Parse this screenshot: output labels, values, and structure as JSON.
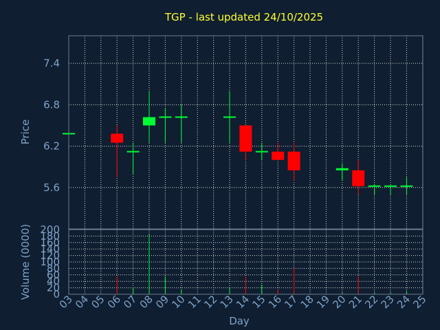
{
  "chart_data": {
    "type": "candlestick",
    "title": "TGP - last updated 24/10/2025",
    "xlabel": "Day",
    "price_panel": {
      "ylabel": "Price",
      "ylim": [
        5.0,
        7.8
      ],
      "yticks": [
        "7.4",
        "6.8",
        "6.2",
        "5.6"
      ],
      "ytick_values": [
        7.4,
        6.8,
        6.2,
        5.6
      ],
      "grid": true
    },
    "volume_panel": {
      "ylabel": "Volume (0000)",
      "ylim": [
        0,
        200
      ],
      "yticks": [
        "200",
        "180",
        "160",
        "140",
        "120",
        "100",
        "80",
        "60",
        "40",
        "20",
        "0"
      ],
      "ytick_values": [
        200,
        180,
        160,
        140,
        120,
        100,
        80,
        60,
        40,
        20,
        0
      ],
      "grid": true
    },
    "x_ticks": [
      "03",
      "04",
      "05",
      "06",
      "07",
      "08",
      "09",
      "10",
      "11",
      "12",
      "13",
      "14",
      "15",
      "16",
      "17",
      "18",
      "19",
      "20",
      "21",
      "22",
      "23",
      "24",
      "25"
    ],
    "candles": [
      {
        "day": "03",
        "open": 6.38,
        "high": 6.38,
        "low": 6.38,
        "close": 6.38,
        "volume": 0
      },
      {
        "day": "06",
        "open": 6.38,
        "high": 6.5,
        "low": 5.75,
        "close": 6.25,
        "volume": 55
      },
      {
        "day": "07",
        "open": 6.12,
        "high": 6.25,
        "low": 5.8,
        "close": 6.12,
        "volume": 20
      },
      {
        "day": "08",
        "open": 6.5,
        "high": 7.0,
        "low": 6.25,
        "close": 6.62,
        "volume": 185
      },
      {
        "day": "09",
        "open": 6.62,
        "high": 6.75,
        "low": 6.25,
        "close": 6.62,
        "volume": 55
      },
      {
        "day": "10",
        "open": 6.62,
        "high": 6.8,
        "low": 6.25,
        "close": 6.62,
        "volume": 15
      },
      {
        "day": "13",
        "open": 6.62,
        "high": 7.0,
        "low": 6.25,
        "close": 6.62,
        "volume": 20
      },
      {
        "day": "14",
        "open": 6.5,
        "high": 6.5,
        "low": 6.0,
        "close": 6.12,
        "volume": 55
      },
      {
        "day": "15",
        "open": 6.12,
        "high": 6.25,
        "low": 6.0,
        "close": 6.12,
        "volume": 30
      },
      {
        "day": "16",
        "open": 6.12,
        "high": 6.25,
        "low": 6.0,
        "close": 6.0,
        "volume": 15
      },
      {
        "day": "17",
        "open": 6.12,
        "high": 6.25,
        "low": 5.7,
        "close": 5.85,
        "volume": 80
      },
      {
        "day": "20",
        "open": 5.85,
        "high": 5.95,
        "low": 5.7,
        "close": 5.88,
        "volume": 5
      },
      {
        "day": "21",
        "open": 5.85,
        "high": 6.0,
        "low": 5.5,
        "close": 5.62,
        "volume": 55
      },
      {
        "day": "22",
        "open": 5.62,
        "high": 5.65,
        "low": 5.5,
        "close": 5.62,
        "volume": 5
      },
      {
        "day": "23",
        "open": 5.62,
        "high": 5.62,
        "low": 5.5,
        "close": 5.62,
        "volume": 5
      },
      {
        "day": "24",
        "open": 5.62,
        "high": 5.75,
        "low": 5.5,
        "close": 5.62,
        "volume": 10
      }
    ],
    "colors": {
      "background": "#0f1e30",
      "up": "#00ff33",
      "down": "#ff0000",
      "text": "#7fa2c8",
      "title": "#ffff33",
      "grid": "#dcdcdc"
    }
  }
}
